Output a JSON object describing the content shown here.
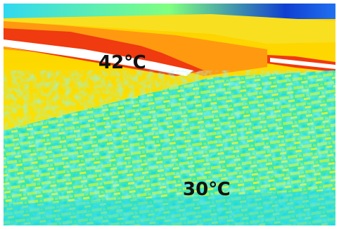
{
  "image": {
    "labels": [
      {
        "text": "42℃"
      },
      {
        "text": "30℃"
      }
    ]
  }
}
